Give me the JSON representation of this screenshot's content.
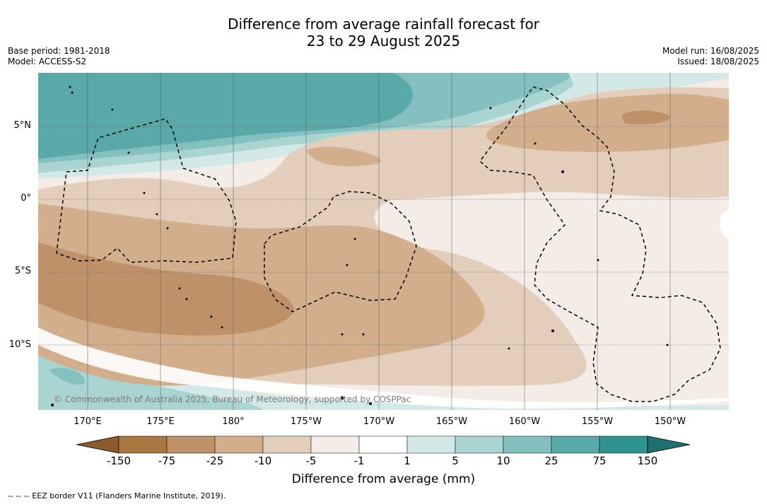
{
  "title_line1": "Difference from average rainfall forecast for",
  "title_line2": "23 to 29 August 2025",
  "base_period": "Base period: 1981-2018",
  "model": "Model: ACCESS-S2",
  "model_run": "Model run: 16/08/2025",
  "issued": "Issued: 18/08/2025",
  "lat_labels": [
    "5°N",
    "0°",
    "5°S",
    "10°S"
  ],
  "lon_labels": [
    "170°E",
    "175°E",
    "180°",
    "175°W",
    "170°W",
    "165°W",
    "160°W",
    "155°W",
    "150°W"
  ],
  "copyright": "© Commonwealth of Australia 2025, Bureau of Meteorology, supported by COSPPac",
  "colorbar": {
    "ticks": [
      "-150",
      "-75",
      "-25",
      "-10",
      "-5",
      "-1",
      "1",
      "5",
      "10",
      "25",
      "75",
      "150"
    ],
    "colors": [
      "#8b5a2b",
      "#a97842",
      "#bf9169",
      "#d2ae8c",
      "#e3cebb",
      "#f4ede7",
      "#ffffff",
      "#d3e9e7",
      "#a9d4d2",
      "#83c0bf",
      "#5aa9a9",
      "#2f9392",
      "#1f6f6e"
    ],
    "label": "Difference from average (mm)"
  },
  "footer": "--  --  -- EEZ border V11 (Flanders Marine Institute, 2019)."
}
